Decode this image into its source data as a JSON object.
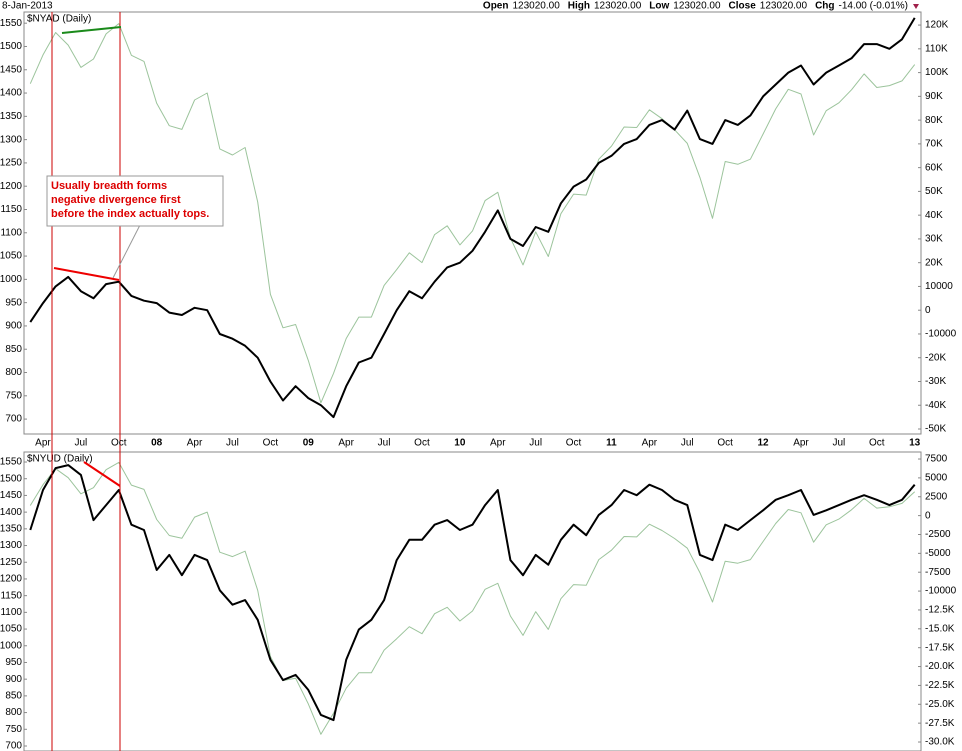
{
  "header": {
    "date": "8-Jan-2013",
    "fields": [
      {
        "label": "Open",
        "value": "123020.00"
      },
      {
        "label": "High",
        "value": "123020.00"
      },
      {
        "label": "Low",
        "value": "123020.00"
      },
      {
        "label": "Close",
        "value": "123020.00"
      },
      {
        "label": "Chg",
        "value": "-14.00 (-0.01%)"
      }
    ]
  },
  "chart_data": [
    {
      "type": "line",
      "title": "$NYAD (Daily)",
      "annotations": [
        "Usually breadth forms",
        "negative divergence first",
        "before the index actually tops."
      ],
      "categories": [
        null,
        "Apr",
        null,
        null,
        "Jul",
        null,
        null,
        "Oct",
        null,
        null,
        "08",
        null,
        null,
        "Apr",
        null,
        null,
        "Jul",
        null,
        null,
        "Oct",
        null,
        null,
        "09",
        null,
        null,
        "Apr",
        null,
        null,
        "Jul",
        null,
        null,
        "Oct",
        null,
        null,
        "10",
        null,
        null,
        "Apr",
        null,
        null,
        "Jul",
        null,
        null,
        "Oct",
        null,
        null,
        "11",
        null,
        null,
        "Apr",
        null,
        null,
        "Jul",
        null,
        null,
        "Oct",
        null,
        null,
        "12",
        null,
        null,
        "Apr",
        null,
        null,
        "Jul",
        null,
        null,
        "Oct",
        null,
        null,
        "13"
      ],
      "series": [
        {
          "color": "#9cc49c",
          "values": [
            1420,
            1482,
            1530,
            1503,
            1455,
            1473,
            1527,
            1549,
            1481,
            1468,
            1378,
            1330,
            1322,
            1385,
            1400,
            1280,
            1267,
            1283,
            1166,
            968,
            896,
            903,
            826,
            735,
            798,
            873,
            919,
            919,
            987,
            1021,
            1057,
            1036,
            1096,
            1115,
            1074,
            1104,
            1169,
            1187,
            1089,
            1031,
            1102,
            1049,
            1141,
            1183,
            1181,
            1258,
            1286,
            1327,
            1326,
            1364,
            1345,
            1321,
            1292,
            1219,
            1131,
            1253,
            1247,
            1258,
            1312,
            1366,
            1408,
            1398,
            1310,
            1362,
            1379,
            1407,
            1441,
            1412,
            1416,
            1426,
            1461
          ]
        },
        {
          "color": "#000000",
          "axis": "y2",
          "values": [
            -5000,
            3000,
            10000,
            14000,
            8000,
            5000,
            11000,
            12000,
            6000,
            4000,
            3000,
            -1000,
            -2000,
            1000,
            0,
            -10000,
            -12000,
            -15000,
            -20000,
            -30000,
            -38000,
            -32000,
            -37000,
            -40000,
            -45000,
            -32000,
            -22000,
            -20000,
            -10000,
            0,
            8000,
            5000,
            12000,
            18000,
            20000,
            25000,
            33000,
            42000,
            30000,
            27000,
            35000,
            33000,
            45000,
            52000,
            55000,
            62000,
            65000,
            70000,
            72000,
            78000,
            80000,
            76000,
            84000,
            72000,
            70000,
            80000,
            78000,
            82000,
            90000,
            95000,
            100000,
            103000,
            95000,
            100000,
            103000,
            106000,
            112000,
            112000,
            110000,
            114000,
            123020
          ]
        }
      ],
      "ylim": [
        668,
        1574
      ],
      "yticks": [
        700,
        750,
        800,
        850,
        900,
        950,
        1000,
        1050,
        1100,
        1150,
        1200,
        1250,
        1300,
        1350,
        1400,
        1450,
        1500,
        1550
      ],
      "y2lim": [
        -52100,
        125500
      ],
      "y2ticks": [
        {
          "value": 120000,
          "label": "120K"
        },
        {
          "value": 110000,
          "label": "110K"
        },
        {
          "value": 100000,
          "label": "100K"
        },
        {
          "value": 90000,
          "label": "90K"
        },
        {
          "value": 80000,
          "label": "80K"
        },
        {
          "value": 70000,
          "label": "70K"
        },
        {
          "value": 60000,
          "label": "60K"
        },
        {
          "value": 50000,
          "label": "50K"
        },
        {
          "value": 40000,
          "label": "40K"
        },
        {
          "value": 30000,
          "label": "30K"
        },
        {
          "value": 20000,
          "label": "20K"
        },
        10000,
        0,
        -10000,
        {
          "value": -20000,
          "label": "-20K"
        },
        {
          "value": -30000,
          "label": "-30K"
        },
        {
          "value": -40000,
          "label": "-40K"
        },
        {
          "value": -50000,
          "label": "-50K"
        }
      ]
    },
    {
      "type": "line",
      "title": "$NYUD (Daily)",
      "series": [
        {
          "color": "#9cc49c",
          "values": [
            1420,
            1482,
            1530,
            1503,
            1455,
            1473,
            1527,
            1549,
            1481,
            1468,
            1378,
            1330,
            1322,
            1385,
            1400,
            1280,
            1267,
            1283,
            1166,
            968,
            896,
            903,
            826,
            735,
            798,
            873,
            919,
            919,
            987,
            1021,
            1057,
            1036,
            1096,
            1115,
            1074,
            1104,
            1169,
            1187,
            1089,
            1031,
            1102,
            1049,
            1141,
            1183,
            1181,
            1258,
            1286,
            1327,
            1326,
            1364,
            1345,
            1321,
            1292,
            1219,
            1131,
            1253,
            1247,
            1258,
            1312,
            1366,
            1408,
            1398,
            1310,
            1362,
            1379,
            1407,
            1441,
            1412,
            1416,
            1426,
            1461
          ]
        },
        {
          "color": "#000000",
          "axis": "y2",
          "values": [
            -1900,
            3400,
            6300,
            6700,
            5400,
            -600,
            1400,
            3400,
            -1200,
            -1900,
            -7200,
            -5200,
            -7900,
            -5200,
            -5900,
            -9900,
            -11800,
            -11200,
            -13800,
            -19100,
            -21800,
            -21100,
            -23100,
            -26400,
            -27100,
            -19100,
            -15100,
            -13800,
            -11200,
            -5900,
            -3200,
            -3200,
            -1200,
            -600,
            -1900,
            -1200,
            1400,
            3400,
            -5900,
            -7900,
            -5200,
            -6500,
            -3200,
            -1200,
            -2600,
            100,
            1400,
            3400,
            2700,
            4100,
            3400,
            2100,
            1400,
            -5200,
            -5900,
            -1200,
            -1900,
            -600,
            700,
            2100,
            2700,
            3400,
            100,
            700,
            1400,
            2100,
            2700,
            2100,
            1400,
            2100,
            4100
          ]
        }
      ],
      "ylim": [
        685,
        1580
      ],
      "yticks": [
        700,
        750,
        800,
        850,
        900,
        950,
        1000,
        1050,
        1100,
        1150,
        1200,
        1250,
        1300,
        1350,
        1400,
        1450,
        1500,
        1550
      ],
      "y2lim": [
        -31190,
        8430
      ],
      "y2ticks": [
        7500,
        5000,
        2500,
        0,
        -2500,
        -5000,
        -7500,
        -10000,
        {
          "value": -12500,
          "label": "-12.5K"
        },
        {
          "value": -15000,
          "label": "-15.0K"
        },
        {
          "value": -17500,
          "label": "-17.5K"
        },
        {
          "value": -20000,
          "label": "-20.0K"
        },
        {
          "value": -22500,
          "label": "-22.5K"
        },
        {
          "value": -25000,
          "label": "-25.0K"
        },
        {
          "value": -27500,
          "label": "-27.5K"
        },
        {
          "value": -30000,
          "label": "-30.0K"
        }
      ]
    }
  ]
}
